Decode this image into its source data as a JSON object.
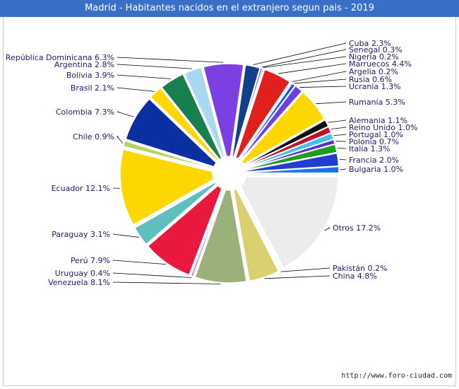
{
  "title": "Madrid - Habitantes nacidos en el extranjero segun pais - 2019",
  "footer": "http://www.foro-ciudad.com",
  "chart_data": {
    "type": "pie",
    "title": "Madrid - Habitantes nacidos en el extranjero segun pais - 2019",
    "slices": [
      {
        "label": "Otros",
        "value": 17.2,
        "display": "Otros 17.2%",
        "color": "#ececec"
      },
      {
        "label": "Pakistán",
        "value": 0.2,
        "display": "Pakistán 0.2%",
        "color": "#b4dcf0"
      },
      {
        "label": "China",
        "value": 4.8,
        "display": "China 4.8%",
        "color": "#d8d071"
      },
      {
        "label": "Venezuela",
        "value": 8.1,
        "display": "Venezuela 8.1%",
        "color": "#9ab27a"
      },
      {
        "label": "Uruguay",
        "value": 0.4,
        "display": "Uruguay 0.4%",
        "color": "#c090c0"
      },
      {
        "label": "Perú",
        "value": 7.9,
        "display": "Perú 7.9%",
        "color": "#e8193c"
      },
      {
        "label": "Paraguay",
        "value": 3.1,
        "display": "Paraguay 3.1%",
        "color": "#5fbfbf"
      },
      {
        "label": "Ecuador",
        "value": 12.1,
        "display": "Ecuador 12.1%",
        "color": "#ffd700"
      },
      {
        "label": "Chile",
        "value": 0.9,
        "display": "Chile 0.9%",
        "color": "#b6d45e"
      },
      {
        "label": "Colombia",
        "value": 7.3,
        "display": "Colombia 7.3%",
        "color": "#0a2fa0"
      },
      {
        "label": "Brasil",
        "value": 2.1,
        "display": "Brasil 2.1%",
        "color": "#ffd700"
      },
      {
        "label": "Bolivia",
        "value": 3.9,
        "display": "Bolivia 3.9%",
        "color": "#1a7f4f"
      },
      {
        "label": "Argentina",
        "value": 2.8,
        "display": "Argentina 2.8%",
        "color": "#a8d8f2"
      },
      {
        "label": "República Dominicana",
        "value": 6.3,
        "display": "República Dominicana 6.3%",
        "color": "#7b3fe4"
      },
      {
        "label": "Cuba",
        "value": 2.3,
        "display": "Cuba 2.3%",
        "color": "#123f8a"
      },
      {
        "label": "Senegal",
        "value": 0.3,
        "display": "Senegal 0.3%",
        "color": "#6a2fb0"
      },
      {
        "label": "Nigeria",
        "value": 0.2,
        "display": "Nigeria 0.2%",
        "color": "#c03030"
      },
      {
        "label": "Marruecos",
        "value": 4.4,
        "display": "Marruecos 4.4%",
        "color": "#e0201c"
      },
      {
        "label": "Argelia",
        "value": 0.2,
        "display": "Argelia 0.2%",
        "color": "#7a90d0"
      },
      {
        "label": "Rusia",
        "value": 0.6,
        "display": "Rusia 0.6%",
        "color": "#1a60e0"
      },
      {
        "label": "Ucrania",
        "value": 1.3,
        "display": "Ucrania 1.3%",
        "color": "#6a3fe8"
      },
      {
        "label": "Rumanía",
        "value": 5.3,
        "display": "Rumanía 5.3%",
        "color": "#ffd700"
      },
      {
        "label": "Alemania",
        "value": 1.1,
        "display": "Alemania 1.1%",
        "color": "#111111"
      },
      {
        "label": "Reino Unido",
        "value": 1.0,
        "display": "Reino Unido 1.0%",
        "color": "#c0102a"
      },
      {
        "label": "Portugal",
        "value": 1.0,
        "display": "Portugal 1.0%",
        "color": "#40c0f0"
      },
      {
        "label": "Polonia",
        "value": 0.7,
        "display": "Polonia 0.7%",
        "color": "#5a2fd0"
      },
      {
        "label": "Italia",
        "value": 1.3,
        "display": "Italia 1.3%",
        "color": "#1e9e1e"
      },
      {
        "label": "Francia",
        "value": 2.0,
        "display": "Francia 2.0%",
        "color": "#1f3fd0"
      },
      {
        "label": "Bulgaria",
        "value": 1.0,
        "display": "Bulgaria 1.0%",
        "color": "#1a70f0"
      }
    ]
  }
}
